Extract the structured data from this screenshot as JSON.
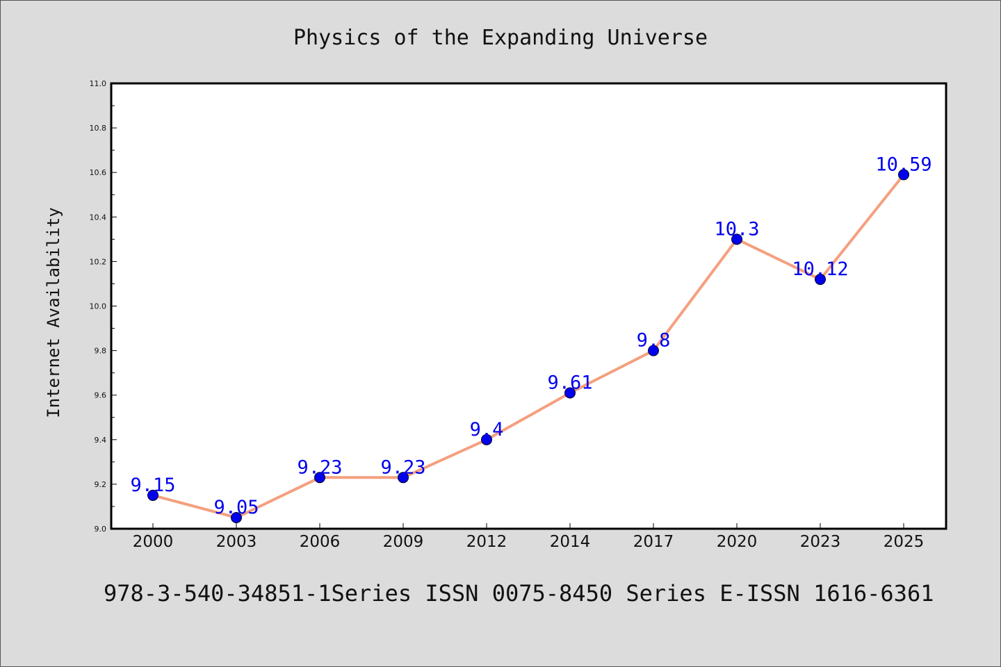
{
  "chart_data": {
    "type": "line",
    "title": "Physics of the Expanding Universe",
    "xlabel": "",
    "ylabel": "Internet Availability",
    "categories": [
      "2000",
      "2003",
      "2006",
      "2009",
      "2012",
      "2014",
      "2017",
      "2020",
      "2023",
      "2025"
    ],
    "series": [
      {
        "values": [
          9.15,
          9.05,
          9.23,
          9.23,
          9.4,
          9.61,
          9.8,
          10.3,
          10.12,
          10.59
        ],
        "labels": [
          "9.15",
          "9.05",
          "9.23",
          "9.23",
          "9.4",
          "9.61",
          "9.8",
          "10.3",
          "10.12",
          "10.59"
        ],
        "line_color": "#f4a07f",
        "marker_color": "#0000ee"
      }
    ],
    "ylim": [
      9.0,
      11.0
    ],
    "yticks": [
      "9.0",
      "9.2",
      "9.4",
      "9.6",
      "9.8",
      "10.0",
      "10.2",
      "10.4",
      "10.6",
      "10.8",
      "11.0"
    ],
    "grid": false,
    "legend": "none"
  },
  "footer": {
    "text": "978-3-540-34851-1Series ISSN 0075-8450 Series E-ISSN 1616-6361"
  },
  "colors": {
    "background": "#dcdcdc",
    "plot_background": "#ffffff",
    "axis": "#000000"
  }
}
